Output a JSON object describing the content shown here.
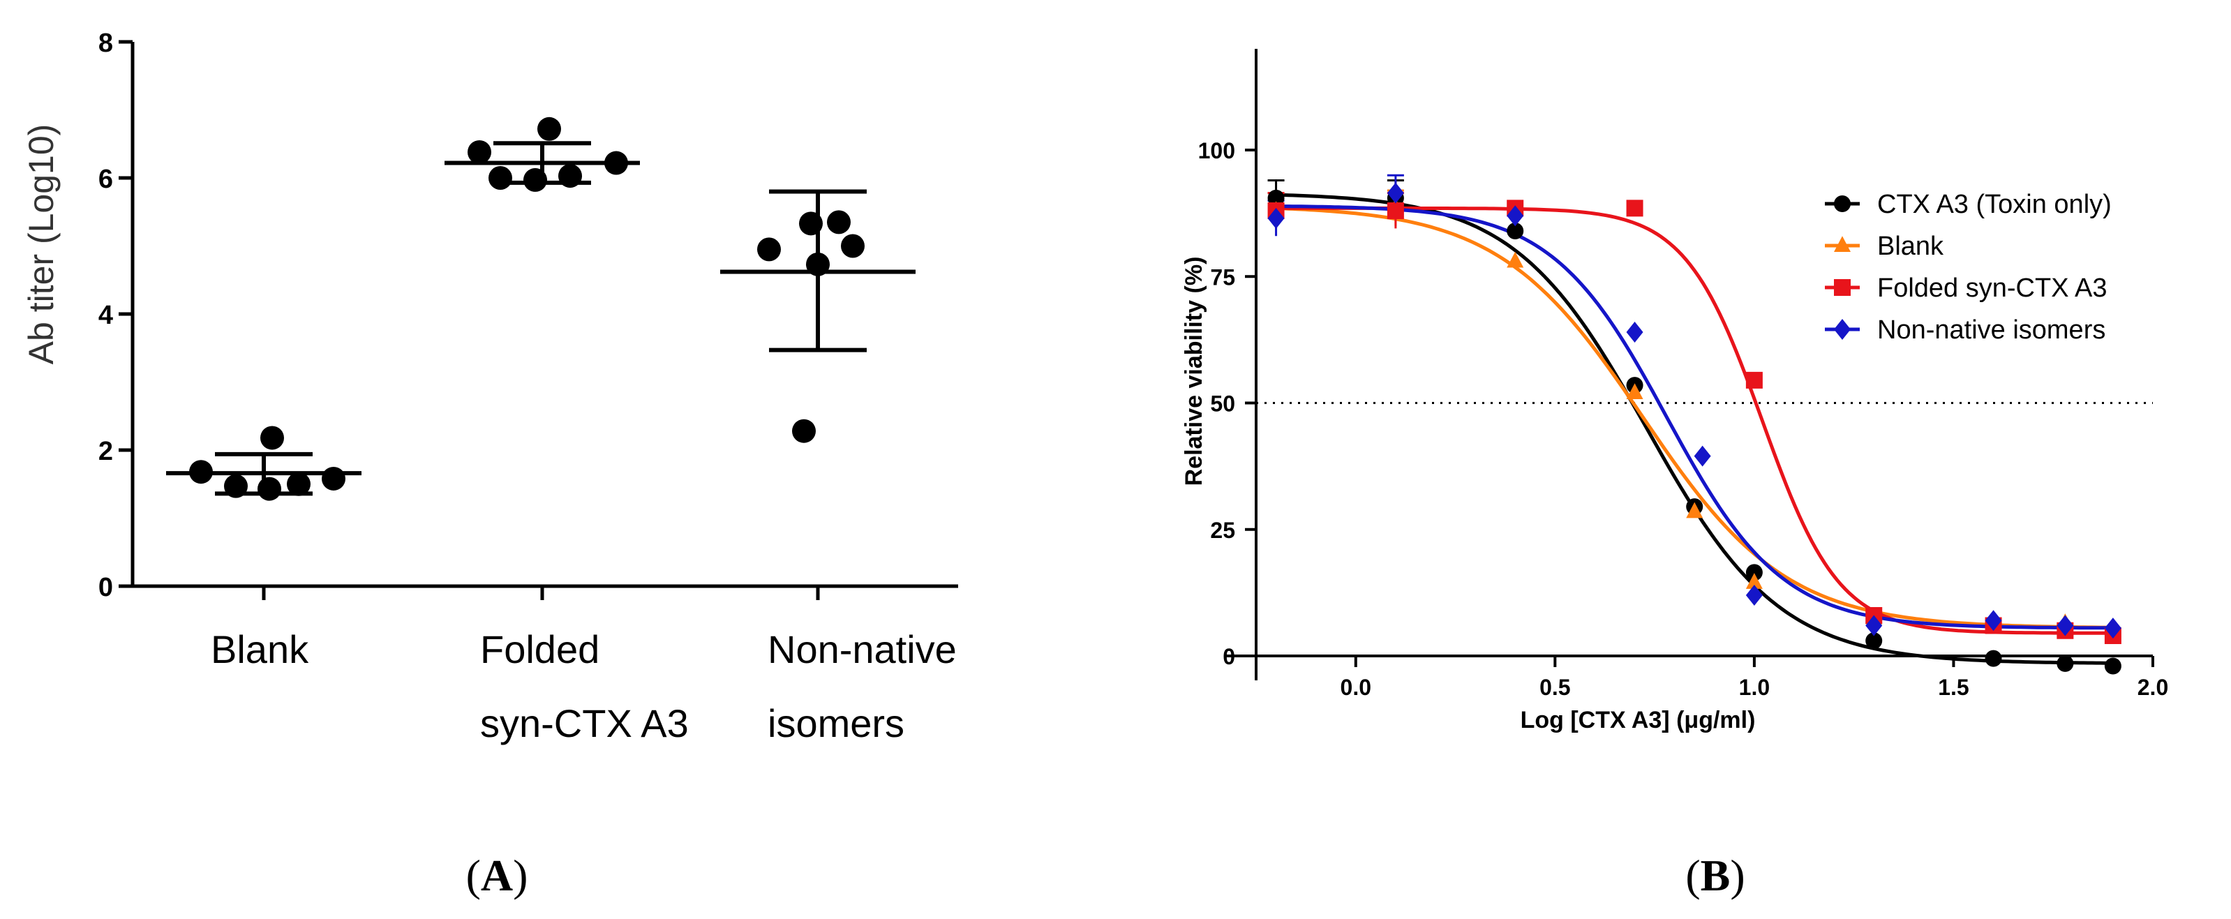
{
  "chart_data": [
    {
      "type": "scatter",
      "panel_label": "A",
      "ylabel": "Ab titer (Log10)",
      "xlabel": "",
      "ylim": [
        0,
        8
      ],
      "yticks": [
        "0",
        "2",
        "4",
        "6",
        "8"
      ],
      "categories": [
        {
          "lines": [
            "Blank"
          ]
        },
        {
          "lines": [
            "Folded",
            "syn-CTX A3"
          ]
        },
        {
          "lines": [
            "Non-native",
            "isomers"
          ]
        }
      ],
      "groups": [
        {
          "points": [
            1.68,
            2.18,
            1.47,
            1.43,
            1.5,
            1.58
          ],
          "mean": 1.66,
          "sd_low": 1.36,
          "sd_high": 1.94
        },
        {
          "points": [
            6.38,
            6.72,
            6.0,
            5.97,
            6.03,
            6.22
          ],
          "mean": 6.22,
          "sd_low": 5.93,
          "sd_high": 6.51
        },
        {
          "points": [
            4.95,
            5.33,
            5.35,
            4.73,
            5.0,
            2.28
          ],
          "mean": 4.62,
          "sd_low": 3.47,
          "sd_high": 5.8
        }
      ],
      "point_color": "#000000"
    },
    {
      "type": "line",
      "panel_label": "B",
      "xlabel": "Log [CTX A3] (μg/ml)",
      "ylabel": "Relative viability (%)",
      "xlim": [
        -0.25,
        2.0
      ],
      "ylim": [
        0,
        120
      ],
      "xticks": [
        "0.0",
        "0.5",
        "1.0",
        "1.5",
        "2.0"
      ],
      "yticks": [
        "0",
        "25",
        "50",
        "75",
        "100"
      ],
      "reference_line": {
        "y": 50,
        "style": "dotted"
      },
      "legend_position": "top-right",
      "series": [
        {
          "name": "CTX A3 (Toxin only)",
          "color": "#000000",
          "marker": "circle",
          "x": [
            -0.2,
            0.1,
            0.4,
            0.7,
            0.85,
            1.0,
            1.3,
            1.6,
            1.78,
            1.9
          ],
          "y": [
            90.5,
            90.5,
            84.0,
            53.5,
            29.5,
            16.5,
            3.0,
            -0.5,
            -1.5,
            -2.0
          ],
          "curve": {
            "top": 91.5,
            "bottom": -1.5,
            "logEC50": 0.73,
            "hill": 2.6
          }
        },
        {
          "name": "Blank",
          "color": "#ff7f0e",
          "marker": "triangle",
          "x": [
            -0.2,
            0.1,
            0.4,
            0.7,
            0.85,
            1.0,
            1.3,
            1.6,
            1.78,
            1.9
          ],
          "y": [
            88.0,
            88.5,
            78.0,
            52.0,
            28.5,
            14.5,
            7.5,
            6.5,
            6.5,
            5.0
          ],
          "curve": {
            "top": 89.0,
            "bottom": 5.5,
            "logEC50": 0.72,
            "hill": 2.4
          }
        },
        {
          "name": "Folded syn-CTX A3",
          "color": "#e8141b",
          "marker": "square",
          "x": [
            -0.2,
            0.1,
            0.4,
            0.7,
            1.0,
            1.3,
            1.6,
            1.78,
            1.9
          ],
          "y": [
            88.0,
            88.0,
            88.5,
            88.5,
            54.5,
            8.0,
            6.0,
            5.0,
            4.0
          ],
          "curve": {
            "top": 88.5,
            "bottom": 4.5,
            "logEC50": 1.02,
            "hill": 4.5
          }
        },
        {
          "name": "Non-native isomers",
          "color": "#1515c8",
          "marker": "diamond",
          "x": [
            -0.2,
            0.1,
            0.4,
            0.7,
            0.87,
            1.0,
            1.3,
            1.6,
            1.78,
            1.9
          ],
          "y": [
            86.5,
            91.5,
            87.0,
            64.0,
            39.5,
            12.0,
            6.0,
            7.0,
            6.0,
            5.5
          ],
          "curve": {
            "top": 89.0,
            "bottom": 5.5,
            "logEC50": 0.78,
            "hill": 3.0
          }
        }
      ]
    }
  ]
}
